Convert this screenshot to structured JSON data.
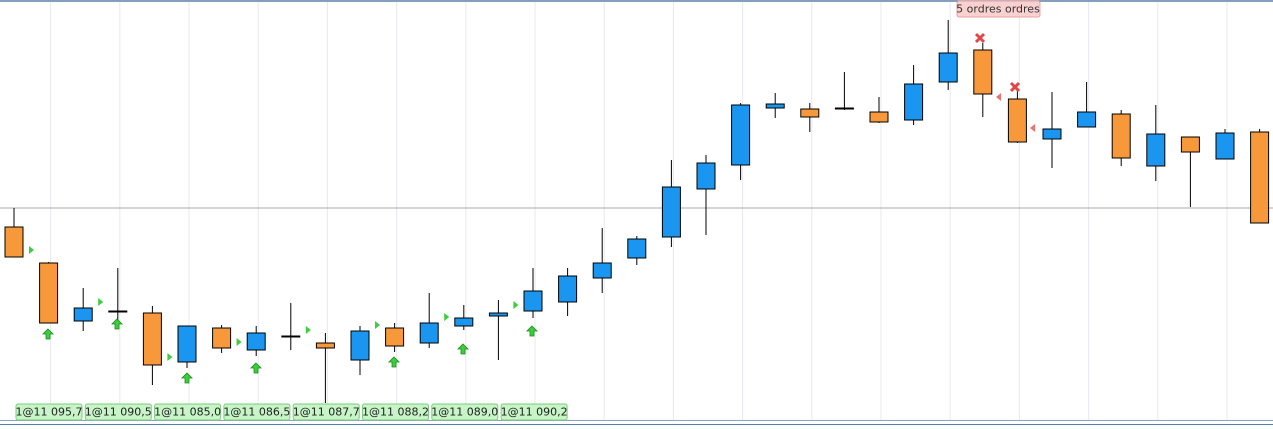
{
  "chart_data": {
    "type": "candlestick",
    "ylim": [
      11078.7,
      11120.7
    ],
    "up_color": "#1a96f0",
    "down_color": "#f7993a",
    "open": [
      11098.0,
      11094.4,
      11088.6,
      11089.5,
      11089.4,
      11084.5,
      11087.9,
      11085.7,
      11087.0,
      11086.4,
      11084.7,
      11087.9,
      11086.4,
      11088.1,
      11089.1,
      11089.6,
      11090.5,
      11092.9,
      11094.9,
      11097.0,
      11101.8,
      11104.2,
      11109.9,
      11109.8,
      11109.8,
      11109.5,
      11108.7,
      11112.5,
      11115.7,
      11110.8,
      11106.8,
      11108.0,
      11109.3,
      11104.1,
      11107.0,
      11104.8,
      11107.5
    ],
    "high": [
      11099.9,
      11094.5,
      11091.9,
      11093.9,
      11090.1,
      11088.1,
      11088.2,
      11088.1,
      11090.4,
      11087.4,
      11088.1,
      11088.4,
      11091.4,
      11090.2,
      11090.7,
      11093.9,
      11093.9,
      11097.9,
      11097.1,
      11104.7,
      11105.2,
      11110.4,
      11111.4,
      11110.4,
      11113.5,
      11111.0,
      11114.2,
      11118.7,
      11116.4,
      11111.8,
      11111.5,
      11112.5,
      11109.7,
      11110.2,
      11107.0,
      11107.8,
      11107.8
    ],
    "low": [
      11095.0,
      11088.4,
      11087.6,
      11088.7,
      11082.2,
      11083.9,
      11085.4,
      11085.1,
      11085.7,
      11080.4,
      11083.2,
      11085.5,
      11085.9,
      11087.7,
      11084.7,
      11088.9,
      11089.1,
      11091.4,
      11094.2,
      11096.0,
      11097.2,
      11102.7,
      11108.9,
      11107.5,
      11109.7,
      11108.4,
      11108.2,
      11111.7,
      11109.0,
      11106.4,
      11103.9,
      11108.0,
      11104.1,
      11102.6,
      11100.0,
      11104.8,
      11098.4
    ],
    "close": [
      11095.0,
      11088.4,
      11089.9,
      11089.6,
      11084.2,
      11088.1,
      11085.9,
      11087.4,
      11087.1,
      11085.9,
      11087.6,
      11086.1,
      11088.4,
      11088.9,
      11089.4,
      11091.6,
      11093.1,
      11094.4,
      11096.8,
      11102.0,
      11104.4,
      11110.2,
      11110.3,
      11109.0,
      11109.9,
      11108.5,
      11112.3,
      11115.4,
      11111.3,
      11106.5,
      11107.8,
      11109.5,
      11104.9,
      11107.3,
      11105.5,
      11107.4,
      11098.4
    ],
    "hline": 11099.9,
    "orders": [
      {
        "label": "1@11 095,7",
        "price": 11095.7
      },
      {
        "label": "1@11 090,5",
        "price": 11090.5
      },
      {
        "label": "1@11 085,0",
        "price": 11085.0
      },
      {
        "label": "1@11 086,5",
        "price": 11086.5
      },
      {
        "label": "1@11 087,7",
        "price": 11087.7
      },
      {
        "label": "1@11 088,2",
        "price": 11088.2
      },
      {
        "label": "1@11 089,0",
        "price": 11089.0
      },
      {
        "label": "1@11 090,2",
        "price": 11090.2
      }
    ],
    "top_label": "5 ordres ordres"
  }
}
